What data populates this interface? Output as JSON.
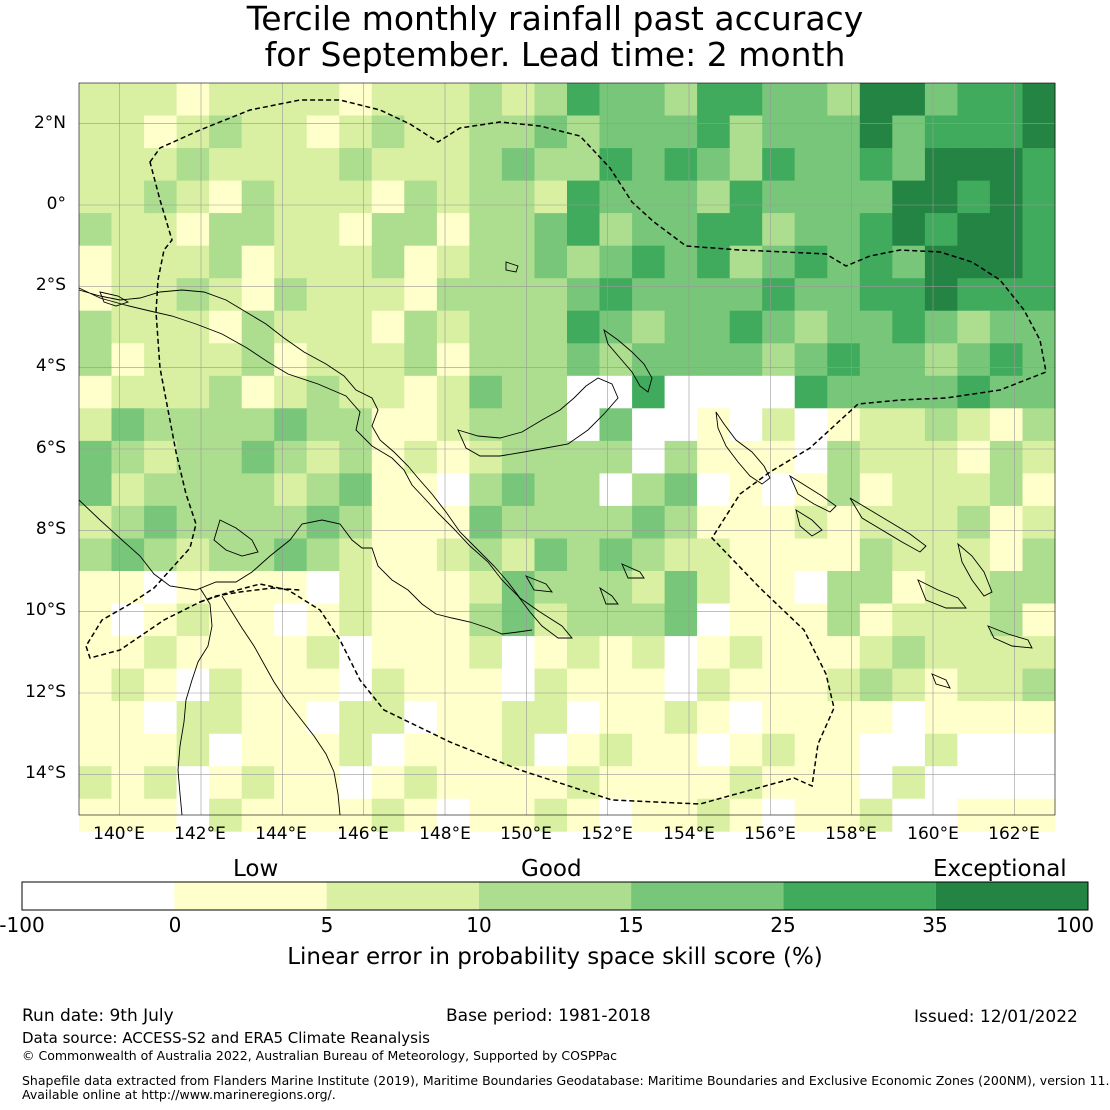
{
  "title": {
    "line1": "Tercile monthly rainfall past accuracy",
    "line2": "for September. Lead time: 2 month"
  },
  "map": {
    "lat_labels": [
      "2°N",
      "0°",
      "2°S",
      "4°S",
      "6°S",
      "8°S",
      "10°S",
      "12°S",
      "14°S"
    ],
    "lon_labels": [
      "140°E",
      "142°E",
      "144°E",
      "146°E",
      "148°E",
      "150°E",
      "152°E",
      "154°E",
      "156°E",
      "158°E",
      "160°E",
      "162°E"
    ],
    "lat_range": [
      -15,
      3
    ],
    "lon_range": [
      139,
      163
    ],
    "grid_resolution_deg": 0.8,
    "gridlines": true,
    "land_outline_color": "#000000",
    "eez_boundary_style": "dashed"
  },
  "colorbar": {
    "categories": [
      "Low",
      "Good",
      "Exceptional"
    ],
    "ticks": [
      "-100",
      "0",
      "5",
      "10",
      "15",
      "25",
      "35",
      "100"
    ],
    "colors": [
      "#ffffff",
      "#ffffcc",
      "#d9f0a3",
      "#addd8e",
      "#78c679",
      "#41ab5d",
      "#238443"
    ],
    "label": "Linear error in probability space skill score (%)"
  },
  "footer": {
    "run_date": "Run date: 9th July",
    "base_period": "Base period: 1981-2018",
    "issued": "Issued: 12/01/2022",
    "data_source": "Data source: ACCESS-S2 and ERA5 Climate Reanalysis",
    "copyright": "© Commonwealth of Australia 2022, Australian Bureau of Meteorology, Supported by COSPPac",
    "shapefile_line1": "Shapefile data extracted from Flanders Marine Institute (2019), Maritime Boundaries Geodatabase: Maritime Boundaries and Exclusive Economic Zones (200NM), version 11.",
    "shapefile_line2": "Available online at http://www.marineregions.org/."
  }
}
